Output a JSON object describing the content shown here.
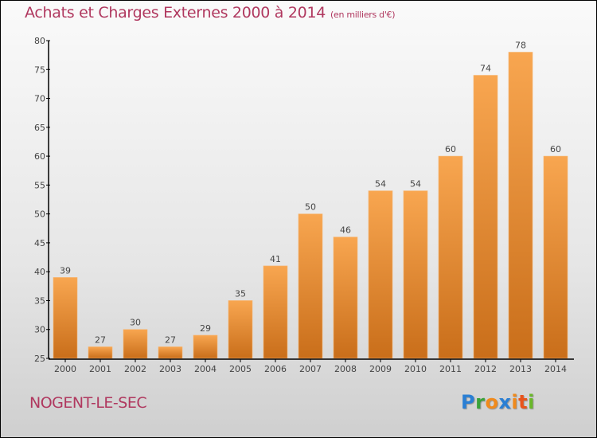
{
  "chart_data": {
    "type": "bar",
    "title": "Achats et Charges Externes 2000 à 2014",
    "subtitle": "(en milliers d'€)",
    "xlabel": "",
    "ylabel": "",
    "categories": [
      "2000",
      "2001",
      "2002",
      "2003",
      "2004",
      "2005",
      "2006",
      "2007",
      "2008",
      "2009",
      "2010",
      "2011",
      "2012",
      "2013",
      "2014"
    ],
    "values": [
      39,
      27,
      30,
      27,
      29,
      35,
      41,
      50,
      46,
      54,
      54,
      60,
      74,
      78,
      60
    ],
    "ylim": [
      25,
      80
    ],
    "yticks": [
      25,
      30,
      35,
      40,
      45,
      50,
      55,
      60,
      65,
      70,
      75,
      80
    ],
    "grid": false,
    "legend": "none",
    "bar_color": "#f0922e"
  },
  "footer": {
    "town": "NOGENT-LE-SEC",
    "logo": {
      "letters": [
        {
          "ch": "P",
          "color": "#2a7fd4"
        },
        {
          "ch": "r",
          "color": "#3aa23a"
        },
        {
          "ch": "o",
          "color": "#f08a1c"
        },
        {
          "ch": "x",
          "color": "#2a7fd4"
        },
        {
          "ch": "i",
          "color": "#f08a1c"
        },
        {
          "ch": "t",
          "color": "#e8541c"
        },
        {
          "ch": "i",
          "color": "#6ab82a"
        }
      ]
    }
  }
}
